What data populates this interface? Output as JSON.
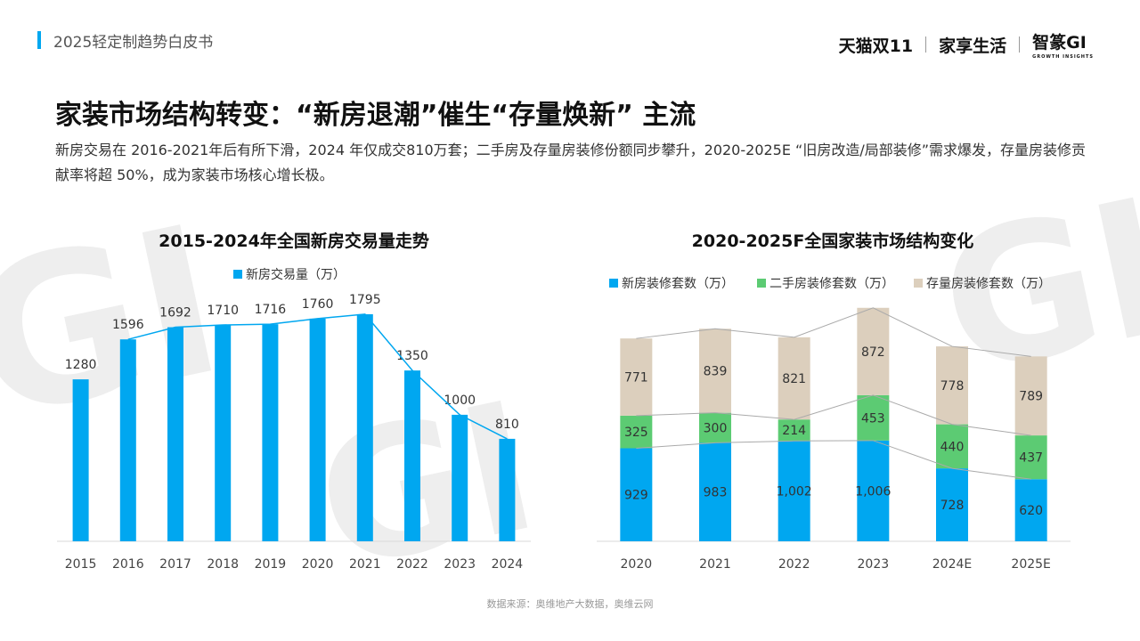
{
  "header": {
    "doc_title": "2025轻定制趋势白皮书",
    "brands": [
      "天猫双11",
      "家享生活",
      "智篆GI"
    ],
    "brand_sub": "GROWTH INSIGHTS"
  },
  "headline": "家装市场结构转变：“新房退潮”催生“存量焕新” 主流",
  "lead": "新房交易在 2016-2021年后有所下滑，2024 年仅成交810万套；二手房及存量房装修份额同步攀升，2020-2025E “旧房改造/局部装修”需求爆发，存量房装修贡献率将超 50%，成为家装市场核心增长极。",
  "source": "数据来源：奥维地产大数据，奥维云网",
  "colors": {
    "accent": "#00a7f0",
    "green": "#5ccb73",
    "beige": "#dccfbd",
    "line": "#aaaaaa"
  },
  "chart_data": [
    {
      "type": "bar",
      "title": "2015-2024年全国新房交易量走势",
      "categories": [
        "2015",
        "2016",
        "2017",
        "2018",
        "2019",
        "2020",
        "2021",
        "2022",
        "2023",
        "2024"
      ],
      "series": [
        {
          "name": "新房交易量（万）",
          "values": [
            1280,
            1596,
            1692,
            1710,
            1716,
            1760,
            1795,
            1350,
            1000,
            810
          ]
        }
      ],
      "data_labels": [
        "1280",
        "1596",
        "1692",
        "1710",
        "1716",
        "1760",
        "1795",
        "1350",
        "1000",
        "810"
      ],
      "trend_line": true,
      "ylim": [
        0,
        1900
      ],
      "legend": "top"
    },
    {
      "type": "bar",
      "stacked": true,
      "title": "2020-2025F全国家装市场结构变化",
      "categories": [
        "2020",
        "2021",
        "2022",
        "2023",
        "2024E",
        "2025E"
      ],
      "series": [
        {
          "name": "新房装修套数（万）",
          "values": [
            929,
            983,
            1002,
            1006,
            728,
            620
          ],
          "labels": [
            "929",
            "983",
            "1,002",
            "1,006",
            "728",
            "620"
          ]
        },
        {
          "name": "二手房装修套数（万）",
          "values": [
            325,
            300,
            214,
            453,
            440,
            437
          ],
          "labels": [
            "325",
            "300",
            "214",
            "453",
            "440",
            "437"
          ]
        },
        {
          "name": "存量房装修套数（万）",
          "values": [
            771,
            839,
            821,
            872,
            778,
            789
          ],
          "labels": [
            "771",
            "839",
            "821",
            "872",
            "778",
            "789"
          ]
        }
      ],
      "series_lines": true,
      "ylim": [
        0,
        2400
      ],
      "legend": "top"
    }
  ]
}
